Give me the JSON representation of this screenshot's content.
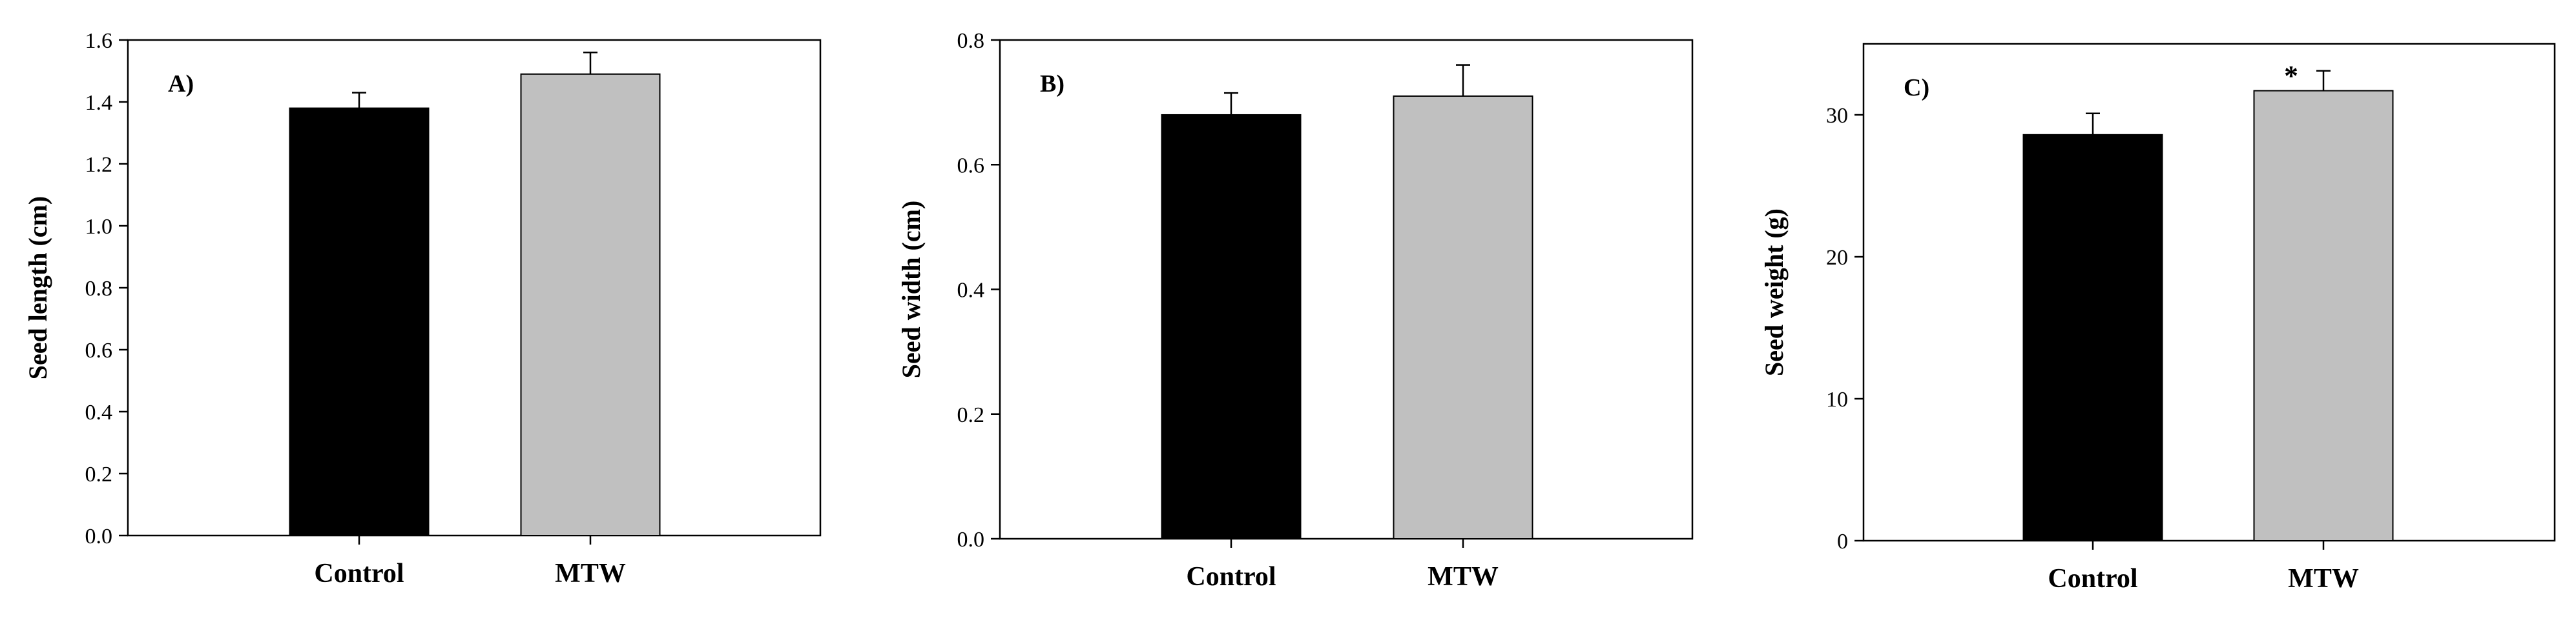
{
  "chart_data": [
    {
      "type": "bar",
      "panel_label": "A)",
      "ylabel": "Seed length  (cm)",
      "xlabel": "",
      "categories": [
        "Control",
        "MTW"
      ],
      "values": [
        1.38,
        1.49
      ],
      "errors": [
        0.05,
        0.07
      ],
      "significance": [
        "",
        ""
      ],
      "bar_colors": [
        "#000000",
        "#c0c0c0"
      ],
      "ylim": [
        0,
        1.6
      ],
      "yticks": [
        0.0,
        0.2,
        0.4,
        0.6,
        0.8,
        1.0,
        1.2,
        1.4,
        1.6
      ],
      "ytick_labels": [
        "0.0",
        "0.2",
        "0.4",
        "0.6",
        "0.8",
        "1.0",
        "1.2",
        "1.4",
        "1.6"
      ]
    },
    {
      "type": "bar",
      "panel_label": "B)",
      "ylabel": "Seed width  (cm)",
      "xlabel": "",
      "categories": [
        "Control",
        "MTW"
      ],
      "values": [
        0.68,
        0.71
      ],
      "errors": [
        0.035,
        0.05
      ],
      "significance": [
        "",
        ""
      ],
      "bar_colors": [
        "#000000",
        "#c0c0c0"
      ],
      "ylim": [
        0,
        0.8
      ],
      "yticks": [
        0.0,
        0.2,
        0.4,
        0.6,
        0.8
      ],
      "ytick_labels": [
        "0.0",
        "0.2",
        "0.4",
        "0.6",
        "0.8"
      ]
    },
    {
      "type": "bar",
      "panel_label": "C)",
      "ylabel": "Seed weight  (g)",
      "xlabel": "",
      "categories": [
        "Control",
        "MTW"
      ],
      "values": [
        28.6,
        31.7
      ],
      "errors": [
        1.5,
        1.4
      ],
      "significance": [
        "",
        "*"
      ],
      "bar_colors": [
        "#000000",
        "#c0c0c0"
      ],
      "ylim": [
        0,
        35
      ],
      "yticks": [
        0,
        10,
        20,
        30
      ],
      "ytick_labels": [
        "0",
        "10",
        "20",
        "30"
      ]
    }
  ]
}
